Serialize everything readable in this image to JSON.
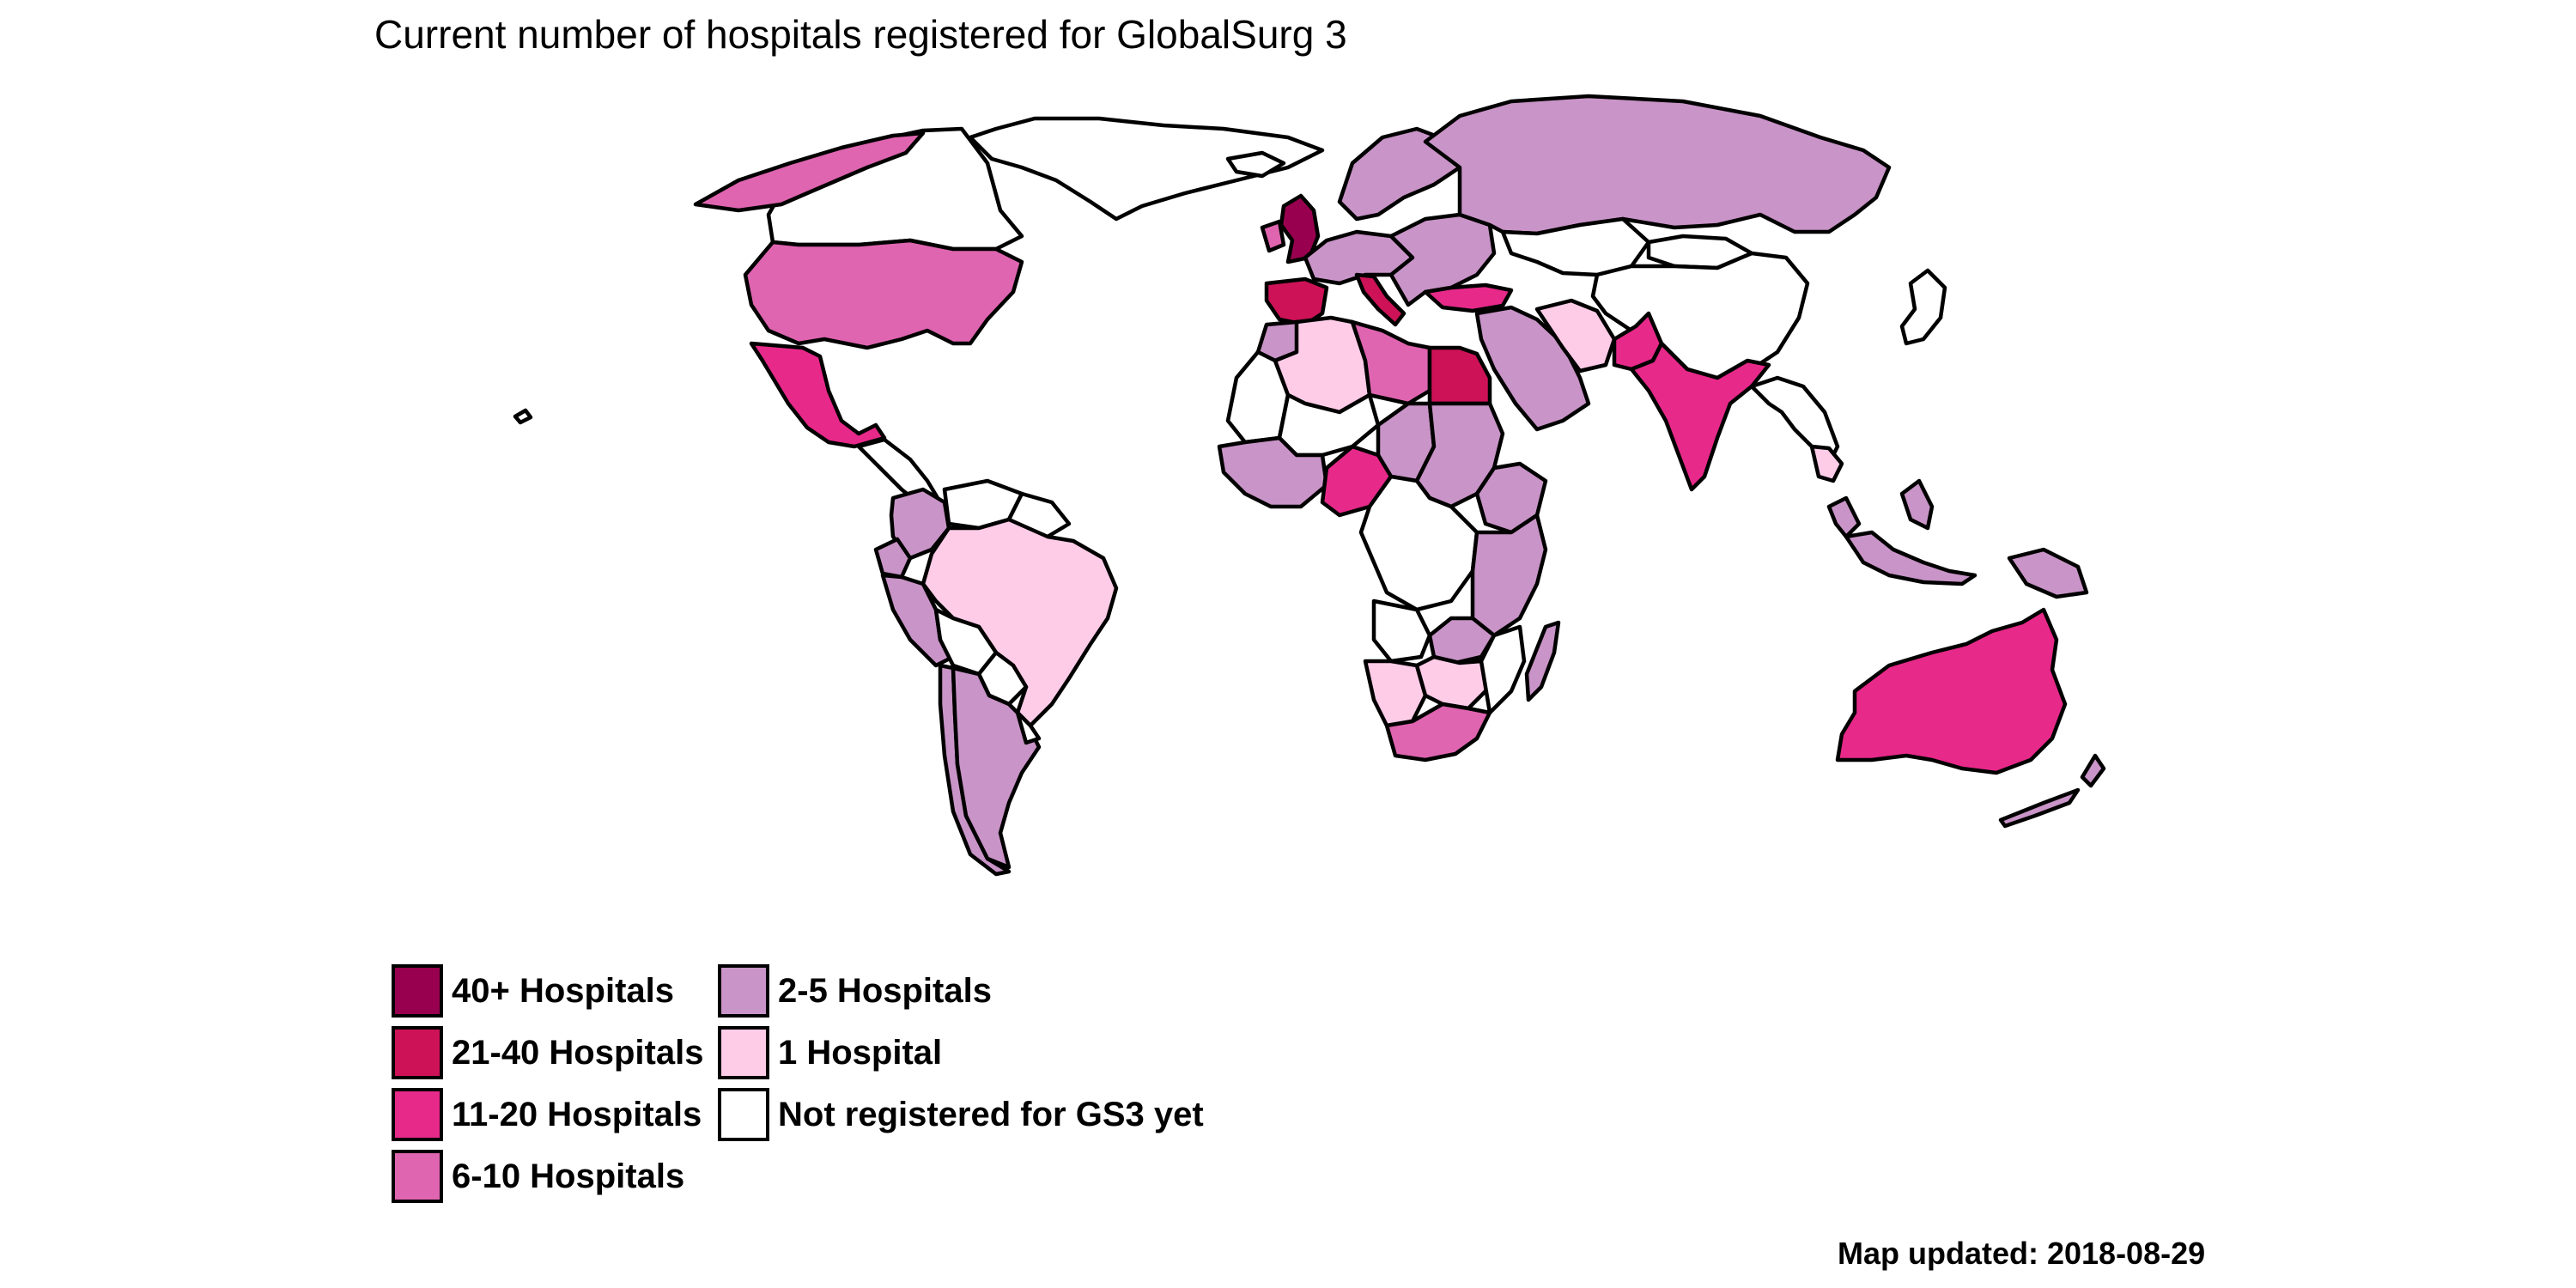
{
  "map": {
    "title": "Current number of hospitals registered for GlobalSurg 3",
    "caption": "Map updated: 2018-08-29",
    "legend": [
      {
        "key": "40+",
        "label": "40+ Hospitals",
        "color": "#98004f"
      },
      {
        "key": "21-40",
        "label": "21-40 Hospitals",
        "color": "#ce1257"
      },
      {
        "key": "11-20",
        "label": "11-20 Hospitals",
        "color": "#e7298a"
      },
      {
        "key": "6-10",
        "label": "6-10 Hospitals",
        "color": "#df65b0"
      },
      {
        "key": "2-5",
        "label": "2-5 Hospitals",
        "color": "#c994c7"
      },
      {
        "key": "1",
        "label": "1 Hospital",
        "color": "#ffcce8"
      },
      {
        "key": "none",
        "label": "Not registered for GS3 yet",
        "color": "#ffffff"
      }
    ],
    "regions": [
      {
        "id": "alaska-canada-north",
        "category": "6-10"
      },
      {
        "id": "usa",
        "category": "6-10"
      },
      {
        "id": "canada",
        "category": "none"
      },
      {
        "id": "greenland",
        "category": "none"
      },
      {
        "id": "mexico",
        "category": "11-20"
      },
      {
        "id": "central-america",
        "category": "none"
      },
      {
        "id": "colombia",
        "category": "2-5"
      },
      {
        "id": "venezuela",
        "category": "none"
      },
      {
        "id": "guianas",
        "category": "none"
      },
      {
        "id": "ecuador",
        "category": "2-5"
      },
      {
        "id": "peru",
        "category": "2-5"
      },
      {
        "id": "brazil",
        "category": "1"
      },
      {
        "id": "bolivia",
        "category": "none"
      },
      {
        "id": "paraguay",
        "category": "none"
      },
      {
        "id": "argentina",
        "category": "2-5"
      },
      {
        "id": "chile",
        "category": "2-5"
      },
      {
        "id": "uruguay",
        "category": "none"
      },
      {
        "id": "iceland",
        "category": "none"
      },
      {
        "id": "united-kingdom",
        "category": "40+"
      },
      {
        "id": "ireland",
        "category": "6-10"
      },
      {
        "id": "scandinavia",
        "category": "2-5"
      },
      {
        "id": "western-europe",
        "category": "2-5"
      },
      {
        "id": "spain-portugal",
        "category": "21-40"
      },
      {
        "id": "italy",
        "category": "21-40"
      },
      {
        "id": "eastern-europe",
        "category": "2-5"
      },
      {
        "id": "russia",
        "category": "2-5"
      },
      {
        "id": "turkey",
        "category": "11-20"
      },
      {
        "id": "kazakhstan-central-asia",
        "category": "none"
      },
      {
        "id": "mongolia",
        "category": "none"
      },
      {
        "id": "china",
        "category": "none"
      },
      {
        "id": "middle-east",
        "category": "2-5"
      },
      {
        "id": "iran",
        "category": "1"
      },
      {
        "id": "pakistan",
        "category": "11-20"
      },
      {
        "id": "india",
        "category": "11-20"
      },
      {
        "id": "southeast-asia",
        "category": "none"
      },
      {
        "id": "thailand",
        "category": "1"
      },
      {
        "id": "malaysia",
        "category": "2-5"
      },
      {
        "id": "indonesia",
        "category": "2-5"
      },
      {
        "id": "philippines",
        "category": "2-5"
      },
      {
        "id": "japan",
        "category": "none"
      },
      {
        "id": "morocco",
        "category": "2-5"
      },
      {
        "id": "western-sahara-mauritania",
        "category": "none"
      },
      {
        "id": "algeria",
        "category": "1"
      },
      {
        "id": "libya",
        "category": "6-10"
      },
      {
        "id": "egypt",
        "category": "21-40"
      },
      {
        "id": "sudan",
        "category": "2-5"
      },
      {
        "id": "mali-niger",
        "category": "none"
      },
      {
        "id": "chad",
        "category": "2-5"
      },
      {
        "id": "west-africa",
        "category": "2-5"
      },
      {
        "id": "nigeria",
        "category": "11-20"
      },
      {
        "id": "ethiopia",
        "category": "2-5"
      },
      {
        "id": "central-africa",
        "category": "none"
      },
      {
        "id": "east-africa",
        "category": "2-5"
      },
      {
        "id": "angola",
        "category": "none"
      },
      {
        "id": "zambia",
        "category": "2-5"
      },
      {
        "id": "namibia",
        "category": "1"
      },
      {
        "id": "botswana-zimbabwe",
        "category": "1"
      },
      {
        "id": "mozambique",
        "category": "none"
      },
      {
        "id": "south-africa",
        "category": "6-10"
      },
      {
        "id": "madagascar",
        "category": "2-5"
      },
      {
        "id": "australia",
        "category": "11-20"
      },
      {
        "id": "new-zealand",
        "category": "2-5"
      },
      {
        "id": "papua-new-guinea",
        "category": "2-5"
      },
      {
        "id": "hawaii",
        "category": "none"
      }
    ]
  }
}
